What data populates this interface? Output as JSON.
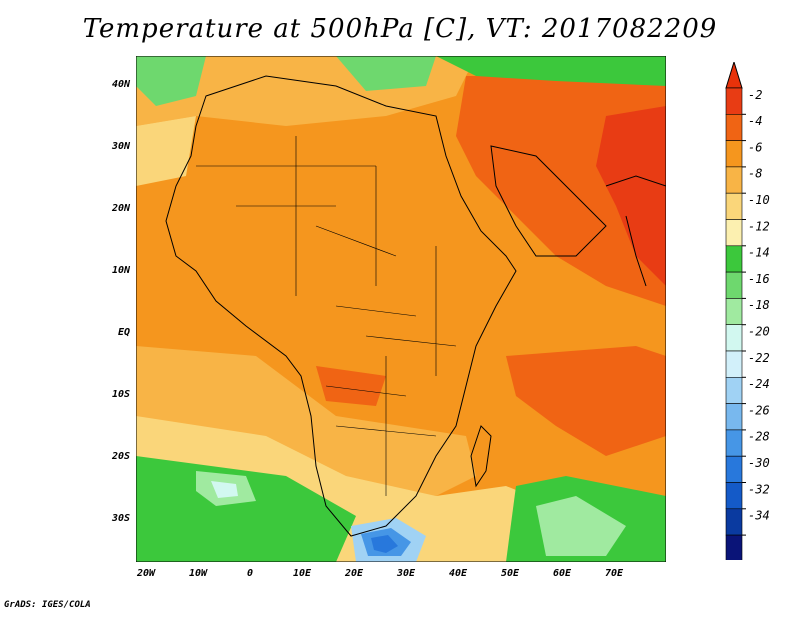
{
  "title": "Temperature at 500hPa [C], VT: 2017082209",
  "footer": "GrADS: IGES/COLA",
  "axes": {
    "y_labels": [
      "40N",
      "30N",
      "20N",
      "10N",
      "EQ",
      "10S",
      "20S",
      "30S"
    ],
    "x_labels": [
      "20W",
      "10W",
      "0",
      "10E",
      "20E",
      "30E",
      "40E",
      "50E",
      "60E",
      "70E"
    ]
  },
  "colorbar": {
    "labels": [
      "-2",
      "-4",
      "-6",
      "-8",
      "-10",
      "-12",
      "-14",
      "-16",
      "-18",
      "-20",
      "-22",
      "-24",
      "-26",
      "-28",
      "-30",
      "-32",
      "-34"
    ],
    "colors": [
      "#e83c14",
      "#f06414",
      "#f5961e",
      "#f8b446",
      "#fad67a",
      "#fcf0b0",
      "#3cc83c",
      "#6ed86e",
      "#a0eaa0",
      "#d2f8f0",
      "#d2f0fa",
      "#a0d2f4",
      "#78b8ee",
      "#4696e6",
      "#2878dc",
      "#145ac8",
      "#0a3aa0",
      "#0a1478"
    ],
    "top_color": "#e8320a",
    "bottom_color": "#dcdcfa"
  },
  "map": {
    "variable": "Temperature at 500hPa",
    "units": "C",
    "region": "Africa and Middle East",
    "lon_range": [
      -22,
      80
    ],
    "lat_range": [
      -37,
      45
    ]
  }
}
